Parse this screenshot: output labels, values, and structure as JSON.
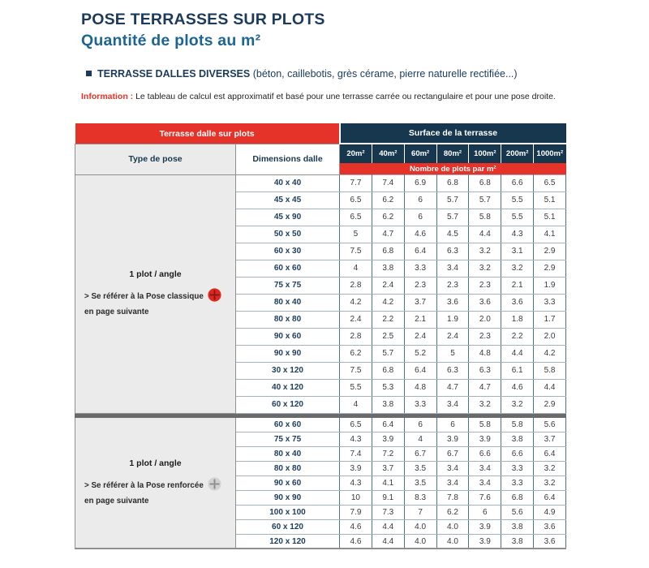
{
  "page": {
    "title_line1": "POSE TERRASSES SUR PLOTS",
    "title_line2": "Quantité de plots au m²",
    "subheading_bold": "TERRASSE DALLES DIVERSES",
    "subheading_rest": " (béton, caillebotis, grès cérame, pierre naturelle rectifiée...)",
    "info_label": "Information :",
    "info_text": " Le tableau de calcul est approximatif et basé pour une terrasse carrée ou rectangulaire et pour une pose droite."
  },
  "colors": {
    "red": "#e6332a",
    "navy": "#17374f",
    "title_navy": "#1b3a5c",
    "title_blue": "#1d6593",
    "grid_line": "#4f7489",
    "left_cell_gray": "#ebebeb"
  },
  "table": {
    "band_left": "Terrasse dalle sur plots",
    "band_right": "Surface de la terrasse",
    "col_type": "Type de pose",
    "col_dimensions": "Dimensions dalle",
    "surface_headers": [
      "20m²",
      "40m²",
      "60m²",
      "80m²",
      "100m²",
      "200m²",
      "1000m²"
    ],
    "plots_strip": "Nombre de plots par m²",
    "sections": [
      {
        "pose": {
          "title": "1 plot / angle",
          "note": "> Se référer à la Pose classique",
          "note2": "en page suivante",
          "icon": "plot-pedestal-red-icon",
          "icon_color": "#dc2a20",
          "icon_detail": "#8c1511"
        },
        "rows": [
          {
            "dimension": "40 x 40",
            "values": [
              "7.7",
              "7.4",
              "6.9",
              "6.8",
              "6.8",
              "6.6",
              "6.5"
            ]
          },
          {
            "dimension": "45 x 45",
            "values": [
              "6.5",
              "6.2",
              "6",
              "5.7",
              "5.7",
              "5.5",
              "5.1"
            ]
          },
          {
            "dimension": "45 x 90",
            "values": [
              "6.5",
              "6.2",
              "6",
              "5.7",
              "5.8",
              "5.5",
              "5.1"
            ]
          },
          {
            "dimension": "50 x 50",
            "values": [
              "5",
              "4.7",
              "4.6",
              "4.5",
              "4.4",
              "4.3",
              "4.1"
            ]
          },
          {
            "dimension": "60 x 30",
            "values": [
              "7.5",
              "6.8",
              "6.4",
              "6.3",
              "3.2",
              "3.1",
              "2.9"
            ]
          },
          {
            "dimension": "60 x 60",
            "values": [
              "4",
              "3.8",
              "3.3",
              "3.4",
              "3.2",
              "3.2",
              "2.9"
            ]
          },
          {
            "dimension": "75 x 75",
            "values": [
              "2.8",
              "2.4",
              "2.3",
              "2.3",
              "2.3",
              "2.1",
              "1.9"
            ]
          },
          {
            "dimension": "80 x 40",
            "values": [
              "4.2",
              "4.2",
              "3.7",
              "3.6",
              "3.6",
              "3.6",
              "3.3"
            ]
          },
          {
            "dimension": "80 x 80",
            "values": [
              "2.4",
              "2.2",
              "2.1",
              "1.9",
              "2.0",
              "1.8",
              "1.7"
            ]
          },
          {
            "dimension": "90 x 60",
            "values": [
              "2.8",
              "2.5",
              "2.4",
              "2.4",
              "2.3",
              "2.2",
              "2.0"
            ]
          },
          {
            "dimension": "90 x 90",
            "values": [
              "6.2",
              "5.7",
              "5.2",
              "5",
              "4.8",
              "4.4",
              "4.2"
            ]
          },
          {
            "dimension": "30 x 120",
            "values": [
              "7.5",
              "6.8",
              "6.4",
              "6.3",
              "6.3",
              "6.1",
              "5.8"
            ]
          },
          {
            "dimension": "40 x 120",
            "values": [
              "5.5",
              "5.3",
              "4.8",
              "4.7",
              "4.7",
              "4.6",
              "4.4"
            ]
          },
          {
            "dimension": "60 x 120",
            "values": [
              "4",
              "3.8",
              "3.3",
              "3.4",
              "3.2",
              "3.2",
              "2.9"
            ]
          }
        ]
      },
      {
        "pose": {
          "title": "1 plot / angle",
          "note": "> Se référer à la Pose renforcée",
          "note2": "en page suivante",
          "icon": "plot-pedestal-gray-icon",
          "icon_color": "#d2d2d2",
          "icon_detail": "#8c8c8c"
        },
        "rows": [
          {
            "dimension": "60 x 60",
            "values": [
              "6.5",
              "6.4",
              "6",
              "6",
              "5.8",
              "5.8",
              "5.6"
            ]
          },
          {
            "dimension": "75 x 75",
            "values": [
              "4.3",
              "3.9",
              "4",
              "3.9",
              "3.9",
              "3.8",
              "3.7"
            ]
          },
          {
            "dimension": "80 x 40",
            "values": [
              "7.4",
              "7.2",
              "6.7",
              "6.7",
              "6.6",
              "6.6",
              "6.4"
            ]
          },
          {
            "dimension": "80 x 80",
            "values": [
              "3.9",
              "3.7",
              "3.5",
              "3.4",
              "3.4",
              "3.3",
              "3.2"
            ]
          },
          {
            "dimension": "90 x 60",
            "values": [
              "4.3",
              "4.1",
              "3.5",
              "3.4",
              "3.4",
              "3.3",
              "3.2"
            ]
          },
          {
            "dimension": "90 x 90",
            "values": [
              "10",
              "9.1",
              "8.3",
              "7.8",
              "7.6",
              "6.8",
              "6.4"
            ]
          },
          {
            "dimension": "100 x 100",
            "values": [
              "7.9",
              "7.3",
              "7",
              "6.2",
              "6",
              "5.6",
              "4.9"
            ]
          },
          {
            "dimension": "60 x 120",
            "values": [
              "4.6",
              "4.4",
              "4.0",
              "4.0",
              "3.9",
              "3.8",
              "3.6"
            ]
          },
          {
            "dimension": "120 x 120",
            "values": [
              "4.6",
              "4.4",
              "4.0",
              "4.0",
              "3.9",
              "3.8",
              "3.6"
            ]
          }
        ]
      }
    ]
  }
}
